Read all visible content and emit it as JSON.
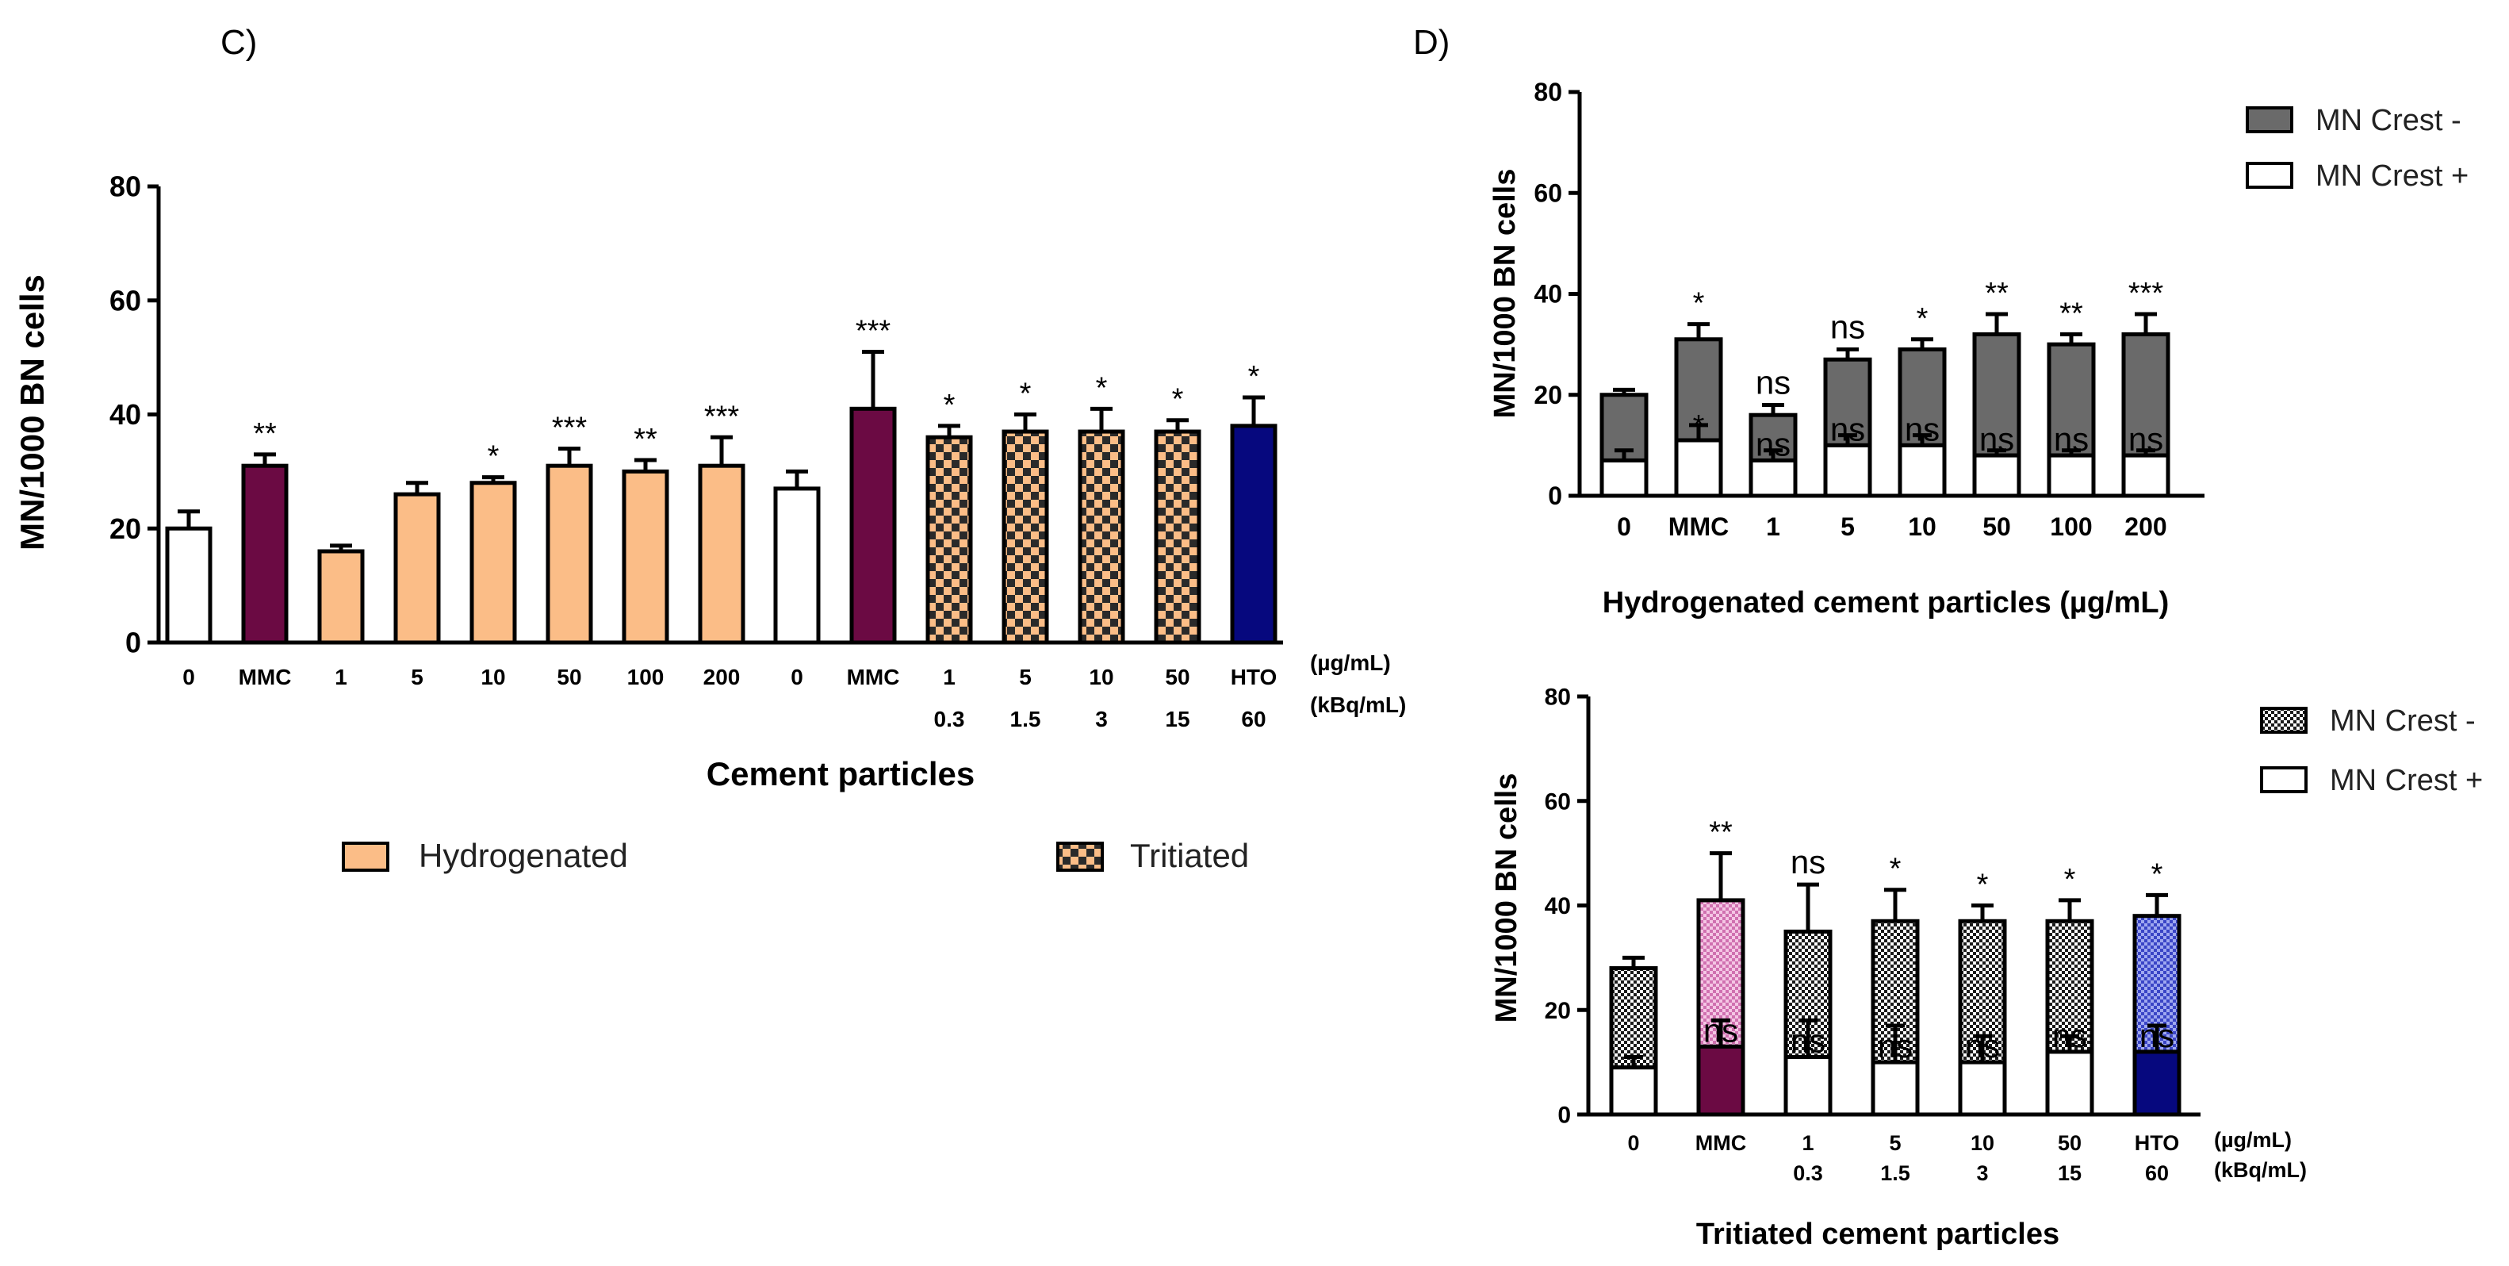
{
  "chart_data": [
    {
      "panel": "C)",
      "type": "bar",
      "ylabel": "MN/1000 BN cells",
      "xlabel": "Cement particles",
      "ylim": [
        0,
        80
      ],
      "yticks": [
        0,
        20,
        40,
        60,
        80
      ],
      "unit_label_1": "(µg/mL)",
      "unit_label_2": "(kBq/mL)",
      "groups": [
        {
          "categories": [
            "0",
            "MMC",
            "1",
            "5",
            "10",
            "50",
            "100",
            "200"
          ],
          "values": [
            20,
            31,
            16,
            26,
            28,
            31,
            30,
            31
          ],
          "errors": [
            3,
            2,
            1,
            2,
            1,
            3,
            2,
            5
          ],
          "significance": [
            "",
            "**",
            "",
            "",
            "*",
            "***",
            "**",
            "***"
          ],
          "fills": [
            "white",
            "mmc",
            "hyd",
            "hyd",
            "hyd",
            "hyd",
            "hyd",
            "hyd"
          ]
        },
        {
          "categories": [
            "0",
            "MMC",
            "1",
            "5",
            "10",
            "50",
            "HTO"
          ],
          "sublabels": [
            "",
            "",
            "0.3",
            "1.5",
            "3",
            "15",
            "60"
          ],
          "values": [
            27,
            41,
            36,
            37,
            37,
            37,
            38
          ],
          "errors": [
            3,
            10,
            2,
            3,
            4,
            2,
            5
          ],
          "significance": [
            "",
            "***",
            "*",
            "*",
            "*",
            "*",
            "*"
          ],
          "fills": [
            "white",
            "mmc",
            "trit",
            "trit",
            "trit",
            "trit",
            "hto"
          ]
        }
      ],
      "legend": [
        {
          "label": "Hydrogenated",
          "fill": "hyd"
        },
        {
          "label": "Tritiated",
          "fill": "trit"
        }
      ]
    },
    {
      "panel": "D)",
      "type": "bar",
      "stacked": true,
      "ylabel": "MN/1000 BN cells",
      "xlabel": "Hydrogenated cement particles (µg/mL)",
      "ylim": [
        0,
        80
      ],
      "yticks": [
        0,
        20,
        40,
        60,
        80
      ],
      "categories": [
        "0",
        "MMC",
        "1",
        "5",
        "10",
        "50",
        "100",
        "200"
      ],
      "series": [
        {
          "name": "MN Crest +",
          "values": [
            7,
            11,
            7,
            10,
            10,
            8,
            8,
            8
          ],
          "errors": [
            2,
            3,
            2,
            2,
            2,
            1,
            1,
            1
          ],
          "significance": [
            "",
            "*",
            "ns",
            "ns",
            "ns",
            "ns",
            "ns",
            "ns"
          ]
        },
        {
          "name": "MN Crest -",
          "values": [
            13,
            20,
            9,
            17,
            19,
            24,
            22,
            24
          ],
          "errors": [
            1,
            3,
            2,
            2,
            2,
            4,
            2,
            4
          ],
          "significance": [
            "",
            "*",
            "ns",
            "ns",
            "*",
            "**",
            "**",
            "***"
          ]
        }
      ],
      "legend": [
        {
          "label": "MN Crest -",
          "fill": "dark"
        },
        {
          "label": "MN Crest +",
          "fill": "white"
        }
      ]
    },
    {
      "type": "bar",
      "stacked": true,
      "ylabel": "MN/1000 BN cells",
      "xlabel": "Tritiated cement particles",
      "ylim": [
        0,
        80
      ],
      "yticks": [
        0,
        20,
        40,
        60,
        80
      ],
      "unit_label_1": "(µg/mL)",
      "unit_label_2": "(kBq/mL)",
      "categories": [
        "0",
        "MMC",
        "1",
        "5",
        "10",
        "50",
        "HTO"
      ],
      "sublabels": [
        "",
        "",
        "0.3",
        "1.5",
        "3",
        "15",
        "60"
      ],
      "series": [
        {
          "name": "MN Crest +",
          "values": [
            9,
            13,
            11,
            10,
            10,
            12,
            12
          ],
          "errors": [
            2,
            5,
            7,
            7,
            5,
            3,
            5
          ],
          "fills": [
            "white",
            "mmc",
            "white",
            "white",
            "white",
            "white",
            "hto"
          ],
          "significance": [
            "",
            "ns",
            "ns",
            "ns",
            "ns",
            "ns",
            "ns"
          ]
        },
        {
          "name": "MN Crest -",
          "values": [
            19,
            28,
            24,
            27,
            27,
            25,
            26
          ],
          "errors": [
            2,
            9,
            9,
            6,
            3,
            4,
            4
          ],
          "fills": [
            "check",
            "mmc-check",
            "check",
            "check",
            "check",
            "check",
            "hto-check"
          ],
          "significance": [
            "",
            "**",
            "ns",
            "*",
            "*",
            "*",
            "*"
          ]
        }
      ],
      "legend": [
        {
          "label": "MN Crest -",
          "fill": "check"
        },
        {
          "label": "MN Crest +",
          "fill": "white"
        }
      ]
    }
  ],
  "colors": {
    "mmc": "#6b0a43",
    "hyd": "#fbbd87",
    "trit_light": "#fbbd87",
    "trit_dark": "#1a1a1a",
    "hto": "#06087e",
    "dark": "#6a6a6a",
    "mmc_check": "#e79ccf",
    "hto_check": "#5a63d6"
  }
}
